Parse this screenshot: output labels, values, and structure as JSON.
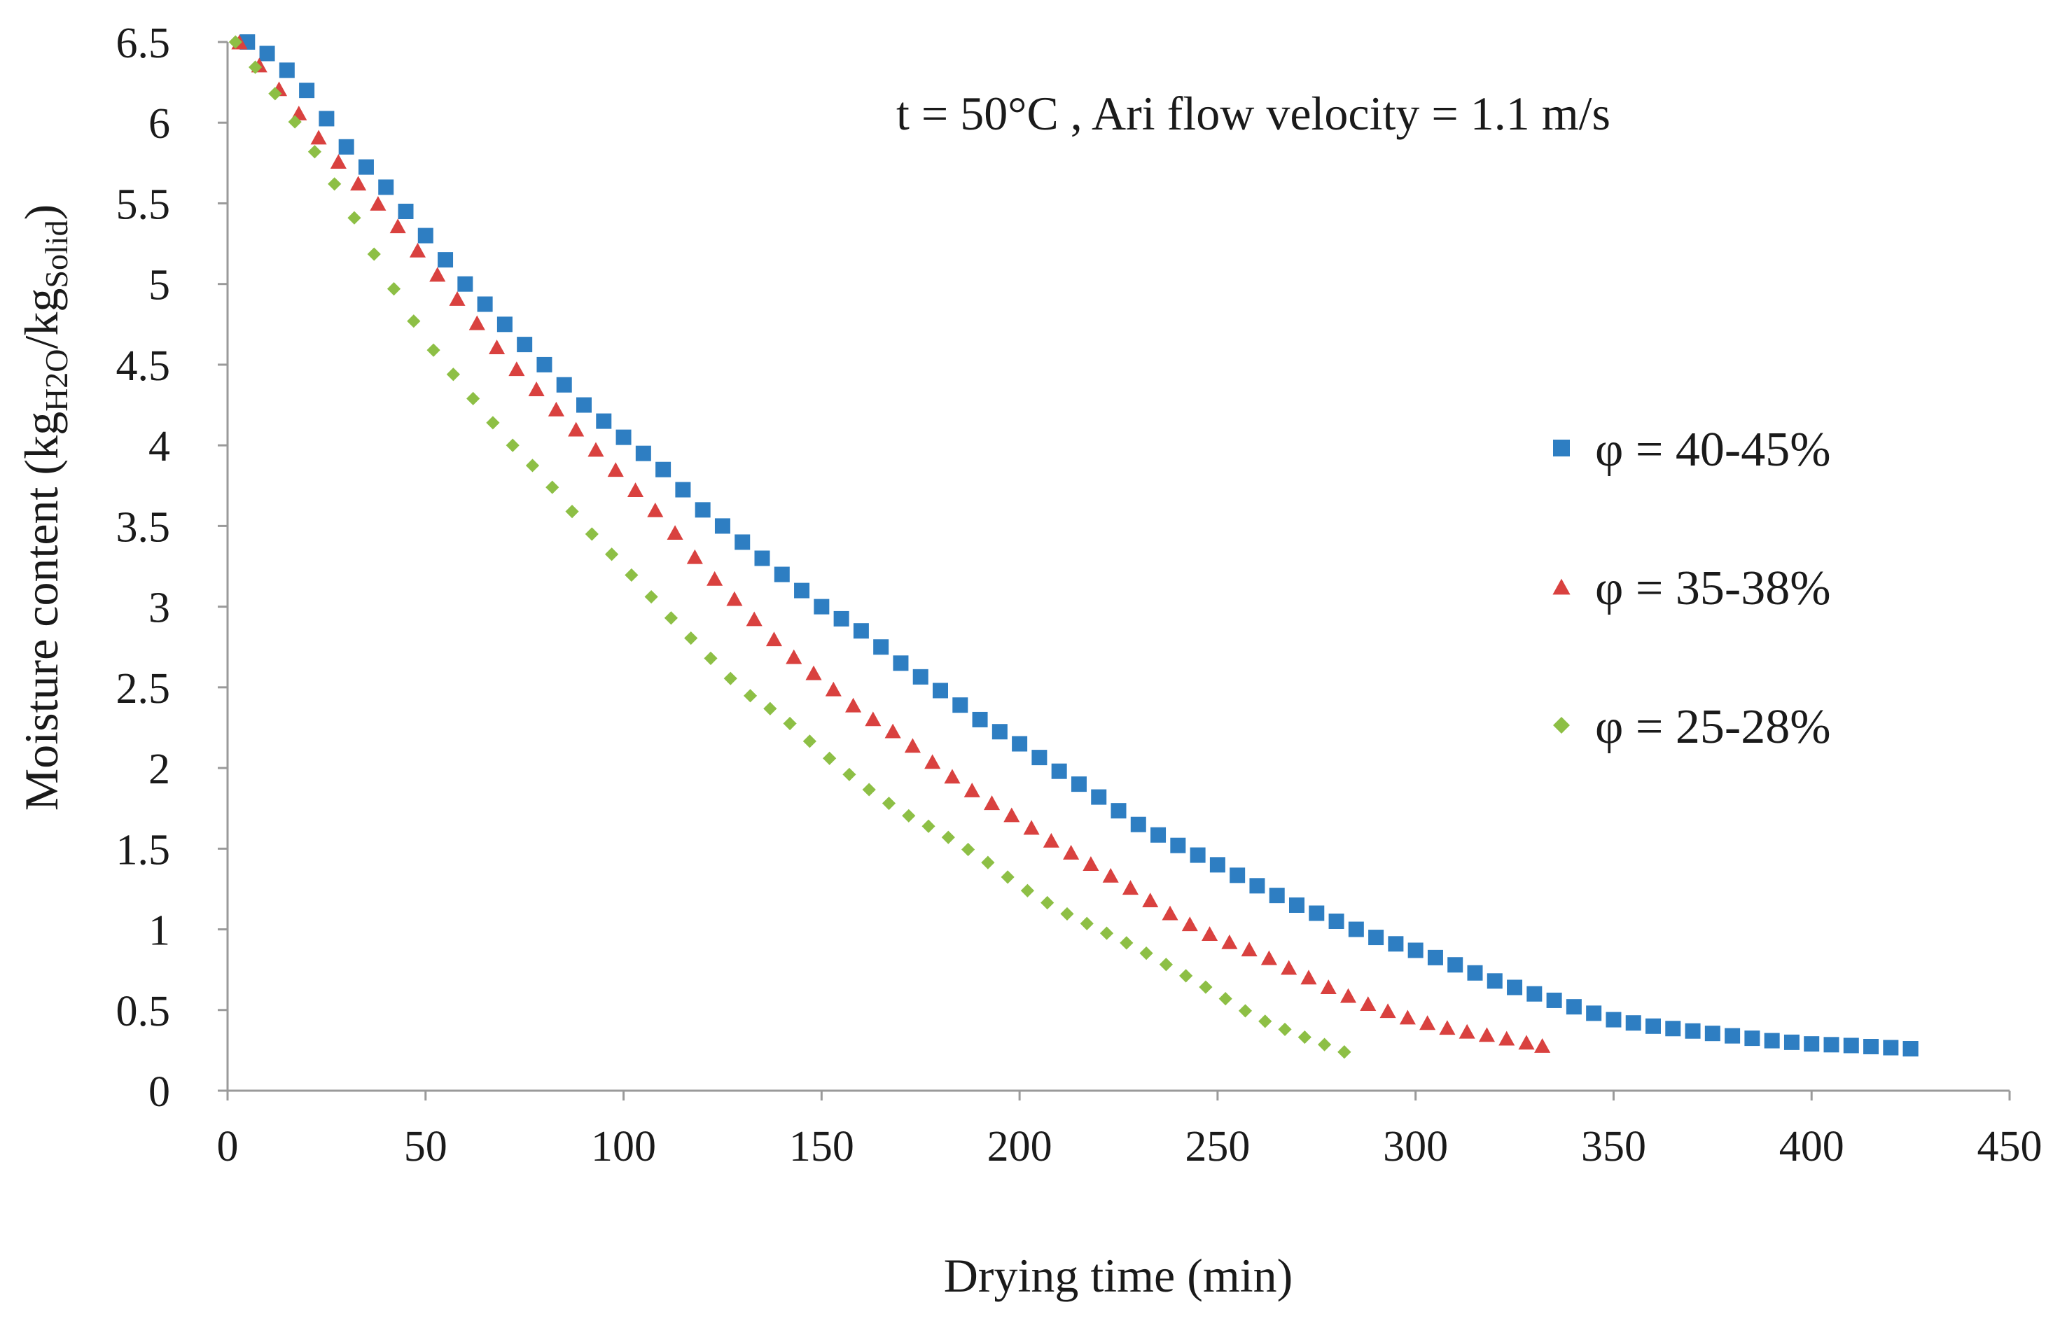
{
  "chart_data": {
    "type": "scatter",
    "title": "",
    "annotation": "t = 50°C , Ari flow velocity = 1.1 m/s",
    "xlabel": "Drying time (min)",
    "ylabel": {
      "prefix": "Moisture content (kg",
      "sub1": "H2O",
      "mid": "/kg",
      "sub2": "Solid",
      "suffix": ")"
    },
    "xlim": [
      0,
      450
    ],
    "ylim": [
      0,
      6.5
    ],
    "xticks": [
      0,
      50,
      100,
      150,
      200,
      250,
      300,
      350,
      400,
      450
    ],
    "xtick_labels": [
      "0",
      "50",
      "100",
      "150",
      "200",
      "250",
      "300",
      "350",
      "400",
      "450"
    ],
    "yticks": [
      0,
      0.5,
      1,
      1.5,
      2,
      2.5,
      3,
      3.5,
      4,
      4.5,
      5,
      5.5,
      6,
      6.5
    ],
    "ytick_labels": [
      "0",
      "0.5",
      "1",
      "1.5",
      "2",
      "2.5",
      "3",
      "3.5",
      "4",
      "4.5",
      "5",
      "5.5",
      "6",
      "6.5"
    ],
    "grid": false,
    "legend_position": "right",
    "sample_step_min": 5,
    "series": [
      {
        "name": "φ = 40-45%",
        "marker": "square",
        "color": "#2E7EC2",
        "anchors": [
          [
            5,
            6.5
          ],
          [
            12,
            6.4
          ],
          [
            20,
            6.2
          ],
          [
            30,
            5.85
          ],
          [
            40,
            5.6
          ],
          [
            50,
            5.3
          ],
          [
            60,
            5.0
          ],
          [
            70,
            4.75
          ],
          [
            80,
            4.5
          ],
          [
            90,
            4.25
          ],
          [
            100,
            4.05
          ],
          [
            110,
            3.85
          ],
          [
            120,
            3.6
          ],
          [
            130,
            3.4
          ],
          [
            140,
            3.2
          ],
          [
            150,
            3.0
          ],
          [
            160,
            2.85
          ],
          [
            170,
            2.65
          ],
          [
            180,
            2.48
          ],
          [
            190,
            2.3
          ],
          [
            200,
            2.15
          ],
          [
            210,
            1.98
          ],
          [
            220,
            1.82
          ],
          [
            230,
            1.65
          ],
          [
            240,
            1.52
          ],
          [
            250,
            1.4
          ],
          [
            260,
            1.27
          ],
          [
            270,
            1.15
          ],
          [
            280,
            1.05
          ],
          [
            290,
            0.95
          ],
          [
            300,
            0.87
          ],
          [
            310,
            0.78
          ],
          [
            320,
            0.68
          ],
          [
            330,
            0.6
          ],
          [
            340,
            0.52
          ],
          [
            350,
            0.44
          ],
          [
            360,
            0.4
          ],
          [
            370,
            0.37
          ],
          [
            380,
            0.34
          ],
          [
            390,
            0.31
          ],
          [
            400,
            0.29
          ],
          [
            410,
            0.28
          ],
          [
            425,
            0.26
          ]
        ]
      },
      {
        "name": "φ = 35-38%",
        "marker": "triangle",
        "color": "#D9413F",
        "anchors": [
          [
            3,
            6.5
          ],
          [
            10,
            6.3
          ],
          [
            20,
            6.0
          ],
          [
            30,
            5.7
          ],
          [
            40,
            5.45
          ],
          [
            50,
            5.15
          ],
          [
            60,
            4.85
          ],
          [
            70,
            4.55
          ],
          [
            80,
            4.3
          ],
          [
            90,
            4.05
          ],
          [
            100,
            3.8
          ],
          [
            110,
            3.55
          ],
          [
            120,
            3.25
          ],
          [
            130,
            3.0
          ],
          [
            140,
            2.75
          ],
          [
            150,
            2.55
          ],
          [
            160,
            2.35
          ],
          [
            170,
            2.2
          ],
          [
            180,
            2.0
          ],
          [
            190,
            1.83
          ],
          [
            200,
            1.68
          ],
          [
            210,
            1.52
          ],
          [
            220,
            1.38
          ],
          [
            230,
            1.23
          ],
          [
            240,
            1.07
          ],
          [
            250,
            0.95
          ],
          [
            260,
            0.86
          ],
          [
            270,
            0.74
          ],
          [
            280,
            0.62
          ],
          [
            290,
            0.52
          ],
          [
            300,
            0.44
          ],
          [
            310,
            0.38
          ],
          [
            320,
            0.34
          ],
          [
            332,
            0.28
          ]
        ]
      },
      {
        "name": "φ = 25-28%",
        "marker": "diamond",
        "color": "#8DBF45",
        "anchors": [
          [
            2,
            6.5
          ],
          [
            10,
            6.25
          ],
          [
            20,
            5.9
          ],
          [
            30,
            5.5
          ],
          [
            40,
            5.05
          ],
          [
            50,
            4.65
          ],
          [
            60,
            4.35
          ],
          [
            70,
            4.05
          ],
          [
            80,
            3.8
          ],
          [
            90,
            3.5
          ],
          [
            100,
            3.25
          ],
          [
            110,
            2.98
          ],
          [
            120,
            2.73
          ],
          [
            130,
            2.48
          ],
          [
            140,
            2.32
          ],
          [
            150,
            2.1
          ],
          [
            160,
            1.9
          ],
          [
            170,
            1.73
          ],
          [
            180,
            1.6
          ],
          [
            190,
            1.45
          ],
          [
            200,
            1.27
          ],
          [
            210,
            1.12
          ],
          [
            220,
            1.0
          ],
          [
            230,
            0.88
          ],
          [
            240,
            0.74
          ],
          [
            250,
            0.6
          ],
          [
            260,
            0.45
          ],
          [
            270,
            0.35
          ],
          [
            282,
            0.24
          ]
        ]
      }
    ]
  }
}
